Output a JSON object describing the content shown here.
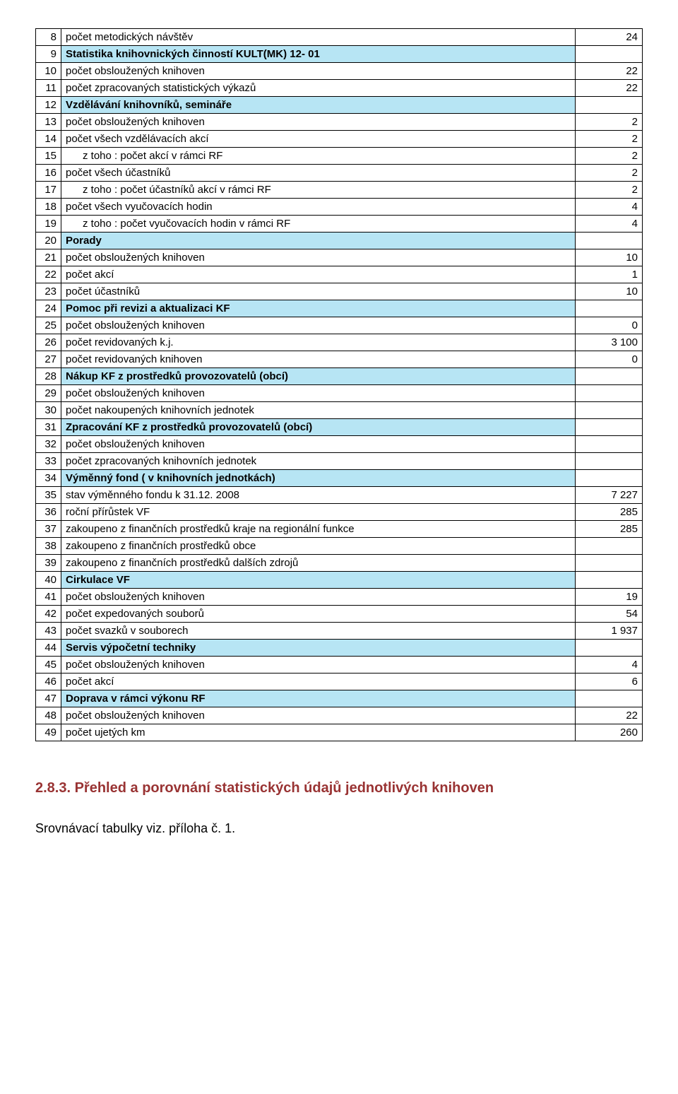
{
  "rows": [
    {
      "n": "8",
      "label": "počet metodických návštěv",
      "val": "24",
      "hl": false,
      "bold": false,
      "indent": false
    },
    {
      "n": "9",
      "label": "Statistika knihovnických činností KULT(MK) 12- 01",
      "val": "",
      "hl": true,
      "bold": true,
      "indent": false
    },
    {
      "n": "10",
      "label": "počet obsloužených knihoven",
      "val": "22",
      "hl": false,
      "bold": false,
      "indent": false
    },
    {
      "n": "11",
      "label": "počet zpracovaných statistických výkazů",
      "val": "22",
      "hl": false,
      "bold": false,
      "indent": false
    },
    {
      "n": "12",
      "label": "Vzdělávání knihovníků, semináře",
      "val": "",
      "hl": true,
      "bold": true,
      "indent": false
    },
    {
      "n": "13",
      "label": "počet obsloužených knihoven",
      "val": "2",
      "hl": false,
      "bold": false,
      "indent": false
    },
    {
      "n": "14",
      "label": "počet všech vzdělávacích akcí",
      "val": "2",
      "hl": false,
      "bold": false,
      "indent": false
    },
    {
      "n": "15",
      "label": "z toho : počet akcí v rámci RF",
      "val": "2",
      "hl": false,
      "bold": false,
      "indent": true
    },
    {
      "n": "16",
      "label": "počet všech účastníků",
      "val": "2",
      "hl": false,
      "bold": false,
      "indent": false
    },
    {
      "n": "17",
      "label": "z toho : počet účastníků akcí v rámci RF",
      "val": "2",
      "hl": false,
      "bold": false,
      "indent": true
    },
    {
      "n": "18",
      "label": "počet všech vyučovacích hodin",
      "val": "4",
      "hl": false,
      "bold": false,
      "indent": false
    },
    {
      "n": "19",
      "label": "z toho : počet vyučovacích hodin v rámci RF",
      "val": "4",
      "hl": false,
      "bold": false,
      "indent": true
    },
    {
      "n": "20",
      "label": "Porady",
      "val": "",
      "hl": true,
      "bold": true,
      "indent": false
    },
    {
      "n": "21",
      "label": "počet obsloužených knihoven",
      "val": "10",
      "hl": false,
      "bold": false,
      "indent": false
    },
    {
      "n": "22",
      "label": "počet akcí",
      "val": "1",
      "hl": false,
      "bold": false,
      "indent": false
    },
    {
      "n": "23",
      "label": "počet účastníků",
      "val": "10",
      "hl": false,
      "bold": false,
      "indent": false
    },
    {
      "n": "24",
      "label": "Pomoc při revizi a aktualizaci KF",
      "val": "",
      "hl": true,
      "bold": true,
      "indent": false
    },
    {
      "n": "25",
      "label": "počet obsloužených knihoven",
      "val": "0",
      "hl": false,
      "bold": false,
      "indent": false
    },
    {
      "n": "26",
      "label": "počet revidovaných k.j.",
      "val": "3 100",
      "hl": false,
      "bold": false,
      "indent": false
    },
    {
      "n": "27",
      "label": "počet revidovaných knihoven",
      "val": "0",
      "hl": false,
      "bold": false,
      "indent": false
    },
    {
      "n": "28",
      "label": "Nákup KF z prostředků provozovatelů (obcí)",
      "val": "",
      "hl": true,
      "bold": true,
      "indent": false
    },
    {
      "n": "29",
      "label": "počet obsloužených knihoven",
      "val": "",
      "hl": false,
      "bold": false,
      "indent": false
    },
    {
      "n": "30",
      "label": "počet nakoupených knihovních jednotek",
      "val": "",
      "hl": false,
      "bold": false,
      "indent": false
    },
    {
      "n": "31",
      "label": "Zpracování KF z prostředků provozovatelů (obcí)",
      "val": "",
      "hl": true,
      "bold": true,
      "indent": false
    },
    {
      "n": "32",
      "label": "počet obsloužených knihoven",
      "val": "",
      "hl": false,
      "bold": false,
      "indent": false
    },
    {
      "n": "33",
      "label": "počet zpracovaných knihovních jednotek",
      "val": "",
      "hl": false,
      "bold": false,
      "indent": false
    },
    {
      "n": "34",
      "label": "Výměnný fond ( v knihovních jednotkách)",
      "val": "",
      "hl": true,
      "bold": true,
      "indent": false
    },
    {
      "n": "35",
      "label": "stav výměnného fondu k 31.12. 2008",
      "val": "7 227",
      "hl": false,
      "bold": false,
      "indent": false
    },
    {
      "n": "36",
      "label": "roční přírůstek VF",
      "val": "285",
      "hl": false,
      "bold": false,
      "indent": false
    },
    {
      "n": "37",
      "label": "zakoupeno z finančních prostředků kraje na regionální funkce",
      "val": "285",
      "hl": false,
      "bold": false,
      "indent": false
    },
    {
      "n": "38",
      "label": "zakoupeno z finančních prostředků obce",
      "val": "",
      "hl": false,
      "bold": false,
      "indent": false
    },
    {
      "n": "39",
      "label": "zakoupeno z finančních prostředků dalších zdrojů",
      "val": "",
      "hl": false,
      "bold": false,
      "indent": false
    },
    {
      "n": "40",
      "label": "Cirkulace VF",
      "val": "",
      "hl": true,
      "bold": true,
      "indent": false
    },
    {
      "n": "41",
      "label": "počet obsloužených knihoven",
      "val": "19",
      "hl": false,
      "bold": false,
      "indent": false
    },
    {
      "n": "42",
      "label": "počet expedovaných souborů",
      "val": "54",
      "hl": false,
      "bold": false,
      "indent": false
    },
    {
      "n": "43",
      "label": "počet svazků v souborech",
      "val": "1 937",
      "hl": false,
      "bold": false,
      "indent": false
    },
    {
      "n": "44",
      "label": "Servis výpočetní techniky",
      "val": "",
      "hl": true,
      "bold": true,
      "indent": false
    },
    {
      "n": "45",
      "label": "počet obsloužených knihoven",
      "val": "4",
      "hl": false,
      "bold": false,
      "indent": false
    },
    {
      "n": "46",
      "label": "počet akcí",
      "val": "6",
      "hl": false,
      "bold": false,
      "indent": false
    },
    {
      "n": "47",
      "label": "Doprava v rámci výkonu RF",
      "val": "",
      "hl": true,
      "bold": true,
      "indent": false
    },
    {
      "n": "48",
      "label": "počet obsloužených knihoven",
      "val": "22",
      "hl": false,
      "bold": false,
      "indent": false
    },
    {
      "n": "49",
      "label": "počet ujetých km",
      "val": "260",
      "hl": false,
      "bold": false,
      "indent": false
    }
  ],
  "heading": "2.8.3. Přehled a porovnání statistických údajů jednotlivých knihoven",
  "footer": "Srovnávací tabulky viz. příloha č. 1.",
  "style": {
    "highlight_color": "#b7e5f4",
    "border_color": "#000000",
    "heading_color": "#993333",
    "font_body": "Arial",
    "font_heading": "Comic Sans MS",
    "cell_fontsize": 15,
    "heading_fontsize": 20
  }
}
